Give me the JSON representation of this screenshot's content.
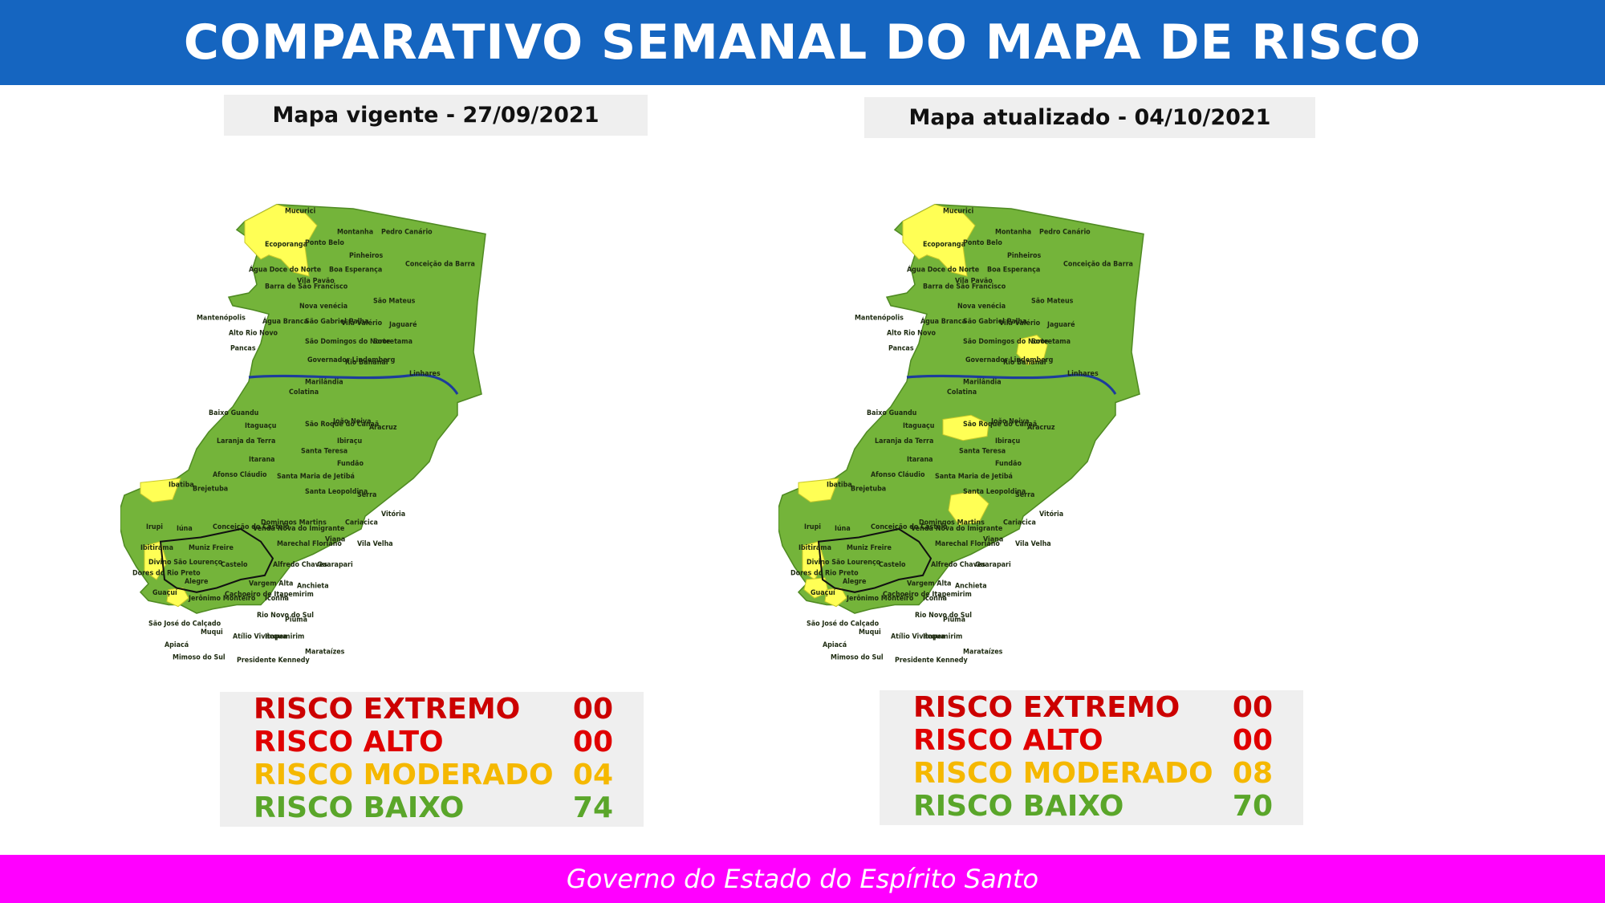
{
  "header": {
    "title": "COMPARATIVO SEMANAL DO MAPA DE RISCO"
  },
  "colors": {
    "header_bg": "#1565c0",
    "footer_bg": "#ff00ff",
    "risk_extremo": "#cc0000",
    "risk_alto": "#e00000",
    "risk_moderado": "#f5b800",
    "risk_baixo": "#5aa62a",
    "map_low": "#74b43a",
    "map_moderate": "#ffff55",
    "river": "#1d3c9c"
  },
  "maps": [
    {
      "caption": "Mapa vigente - 27/09/2021",
      "moderate_municipalities": [
        "Ecoporanga",
        "Ibatiba",
        "Guaçuí",
        "Apiacá"
      ],
      "stats": [
        {
          "label": "RISCO EXTREMO",
          "value": "00"
        },
        {
          "label": "RISCO ALTO",
          "value": "00"
        },
        {
          "label": "RISCO MODERADO",
          "value": "04"
        },
        {
          "label": "RISCO BAIXO",
          "value": "74"
        }
      ]
    },
    {
      "caption": "Mapa atualizado - 04/10/2021",
      "moderate_municipalities": [
        "Ecoporanga",
        "Rio Bananal",
        "Santa Teresa",
        "Alfredo Chaves",
        "Ibatiba",
        "Guaçuí",
        "São José do Calçado",
        "Apiacá"
      ],
      "stats": [
        {
          "label": "RISCO EXTREMO",
          "value": "00"
        },
        {
          "label": "RISCO ALTO",
          "value": "00"
        },
        {
          "label": "RISCO MODERADO",
          "value": "08"
        },
        {
          "label": "RISCO BAIXO",
          "value": "70"
        }
      ]
    }
  ],
  "municipality_labels": [
    "Mucurici",
    "Montanha",
    "Pedro Canário",
    "Ecoporanga",
    "Ponto Belo",
    "Pinheiros",
    "Conceição da Barra",
    "Água Doce do Norte",
    "Boa Esperança",
    "Vila Pavão",
    "Barra de São Francisco",
    "São Mateus",
    "Nova venécia",
    "Mantenópolis",
    "Água Branca",
    "São Gabriel Palha",
    "Vila Valério",
    "Jaguaré",
    "Alto Rio Novo",
    "São Domingos do Norte",
    "Sooretama",
    "Pancas",
    "Governador Lindemberg",
    "Rio Bananal",
    "Linhares",
    "Marilândia",
    "Colatina",
    "Baixo Guandu",
    "Itaguaçu",
    "São Roque do Canaã",
    "João Neiva",
    "Aracruz",
    "Laranja da Terra",
    "Santa Teresa",
    "Ibiraçu",
    "Itarana",
    "Fundão",
    "Afonso Cláudio",
    "Santa Maria de Jetibá",
    "Brejetuba",
    "Santa Leopoldina",
    "Serra",
    "Ibatiba",
    "Vitória",
    "Domingos Martins",
    "Cariacica",
    "Irupi",
    "Iúna",
    "Conceição do Castelo",
    "Venda Nova do Imigrante",
    "Viana",
    "Vila Velha",
    "Ibitirama",
    "Muniz Freire",
    "Marechal Floriano",
    "Divino São Lourenço",
    "Dores do Rio Preto",
    "Castelo",
    "Alfredo Chaves",
    "Guarapari",
    "Alegre",
    "Vargem Alta",
    "Guaçuí",
    "Jerônimo Monteiro",
    "Cachoeiro de Itapemirim",
    "Anchieta",
    "Iconha",
    "Rio Novo do Sul",
    "Piúma",
    "São José do Calçado",
    "Muqui",
    "Atílio Vivácqua",
    "Itapemirim",
    "Apiacá",
    "Mimoso do Sul",
    "Marataízes",
    "Presidente Kennedy"
  ],
  "footer": {
    "text": "Governo do Estado do Espírito Santo"
  }
}
